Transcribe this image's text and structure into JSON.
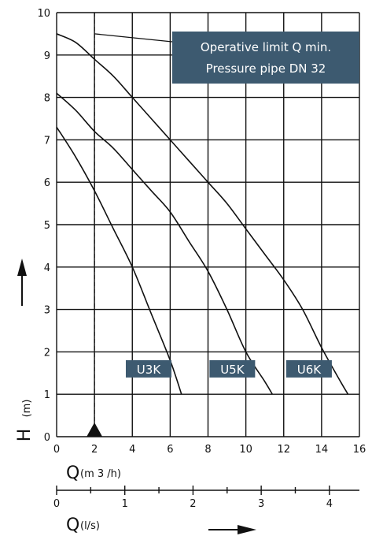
{
  "chart_data": {
    "type": "line",
    "xlabel": "Q",
    "xunit": "(m 3 /h)",
    "ylabel": "H",
    "yunit": "(m)",
    "x2label": "Q",
    "x2unit": "(l/s)",
    "xlim": [
      0,
      16
    ],
    "ylim": [
      0,
      10
    ],
    "x2lim": [
      0,
      4.44
    ],
    "xticks": [
      0,
      2,
      4,
      6,
      8,
      10,
      12,
      14,
      16
    ],
    "yticks": [
      0,
      1,
      2,
      3,
      4,
      5,
      6,
      7,
      8,
      9,
      10
    ],
    "x2ticks": [
      0,
      1,
      2,
      3,
      4
    ],
    "grid": true,
    "note": {
      "lines": [
        "Operative limit Q min.",
        "Pressure pipe DN 32"
      ],
      "bg_color": "#3d5a70"
    },
    "min_limit": {
      "x": 2,
      "marker_y": 0,
      "leader_start_y": 9.5
    },
    "series": [
      {
        "name": "U3K",
        "x": [
          0,
          1,
          2,
          3,
          4,
          5,
          6,
          6.6
        ],
        "y": [
          7.3,
          6.6,
          5.8,
          4.9,
          4.0,
          2.9,
          1.8,
          1.0
        ]
      },
      {
        "name": "U5K",
        "x": [
          0,
          1,
          2,
          3,
          4,
          5,
          6,
          7,
          8,
          9,
          10,
          11,
          11.4
        ],
        "y": [
          8.1,
          7.7,
          7.2,
          6.8,
          6.3,
          5.8,
          5.3,
          4.6,
          3.9,
          3.0,
          2.0,
          1.3,
          1.0
        ]
      },
      {
        "name": "U6K",
        "x": [
          0,
          1,
          2,
          3,
          4,
          5,
          6,
          7,
          8,
          9,
          10,
          11,
          12,
          13,
          14,
          15,
          15.4
        ],
        "y": [
          9.5,
          9.3,
          8.9,
          8.5,
          8.0,
          7.5,
          7.0,
          6.5,
          6.0,
          5.5,
          4.9,
          4.3,
          3.7,
          3.0,
          2.1,
          1.3,
          1.0
        ]
      }
    ],
    "label_bg": "#3d5a70"
  }
}
